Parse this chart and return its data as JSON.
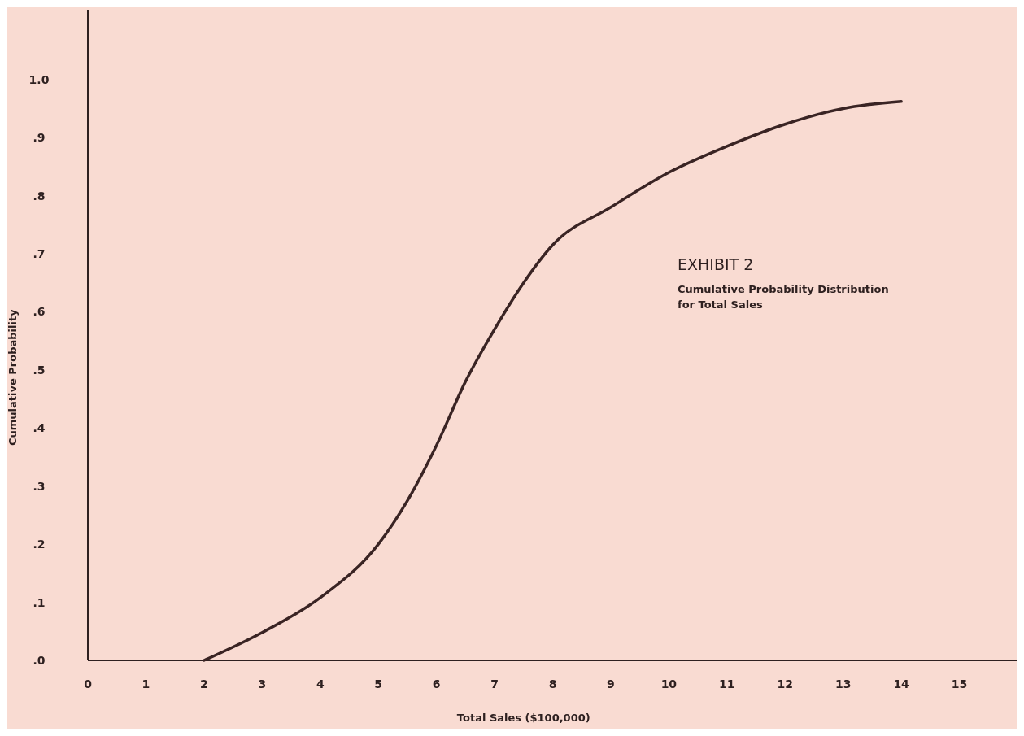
{
  "chart_data": {
    "type": "line",
    "title": "EXHIBIT 2",
    "subtitle": "Cumulative Probability Distribution for Total Sales",
    "xlabel": "Total Sales ($100,000)",
    "ylabel": "Cumulative Probability",
    "x": [
      2,
      3,
      4,
      5,
      5.5,
      6,
      6.5,
      7,
      7.5,
      8,
      9,
      10,
      11,
      12,
      13,
      14
    ],
    "series": [
      {
        "color": "#3a2424",
        "values": [
          0,
          0.048,
          0.108,
          0.2,
          0.275,
          0.37,
          0.48,
          0.57,
          0.65,
          0.715,
          0.78,
          0.84,
          0.885,
          0.923,
          0.95,
          0.962
        ]
      }
    ],
    "xlim": [
      0,
      16
    ],
    "ylim": [
      0,
      1.12
    ],
    "xticks": [
      0,
      1,
      2,
      3,
      4,
      5,
      6,
      7,
      8,
      9,
      10,
      11,
      12,
      13,
      14,
      15
    ],
    "yticks": [
      {
        "value": 0,
        "label": ".0"
      },
      {
        "value": 0.1,
        "label": ".1"
      },
      {
        "value": 0.2,
        "label": ".2"
      },
      {
        "value": 0.3,
        "label": ".3"
      },
      {
        "value": 0.4,
        "label": ".4"
      },
      {
        "value": 0.5,
        "label": ".5"
      },
      {
        "value": 0.6,
        "label": ".6"
      },
      {
        "value": 0.7,
        "label": ".7"
      },
      {
        "value": 0.8,
        "label": ".8"
      },
      {
        "value": 0.9,
        "label": ".9"
      },
      {
        "value": 1,
        "label": "1.0"
      }
    ],
    "grid": false,
    "line_style": "solid",
    "marker": "none"
  }
}
